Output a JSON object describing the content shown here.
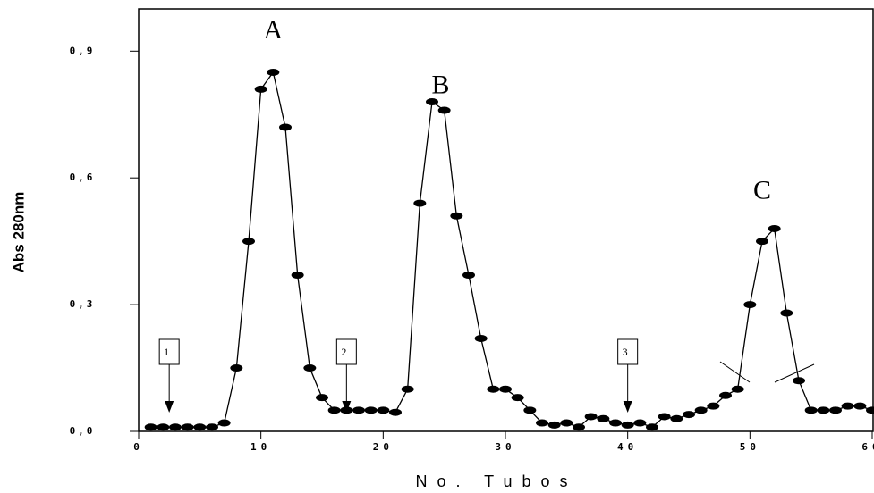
{
  "chart_data": {
    "type": "line",
    "x_label": "No. Tubos",
    "y_label": "Abs 280nm",
    "x": [
      1,
      2,
      3,
      4,
      5,
      6,
      7,
      8,
      9,
      10,
      11,
      12,
      13,
      14,
      15,
      16,
      17,
      18,
      19,
      20,
      21,
      22,
      23,
      24,
      25,
      26,
      27,
      28,
      29,
      30,
      31,
      32,
      33,
      34,
      35,
      36,
      37,
      38,
      39,
      40,
      41,
      42,
      43,
      44,
      45,
      46,
      47,
      48,
      49,
      50,
      51,
      52,
      53,
      54,
      55,
      56,
      57,
      58,
      59,
      60
    ],
    "series": [
      {
        "color": "#000000",
        "values": [
          0.01,
          0.01,
          0.01,
          0.01,
          0.01,
          0.01,
          0.02,
          0.15,
          0.45,
          0.81,
          0.85,
          0.72,
          0.37,
          0.15,
          0.08,
          0.05,
          0.05,
          0.05,
          0.05,
          0.05,
          0.045,
          0.1,
          0.54,
          0.78,
          0.76,
          0.51,
          0.37,
          0.22,
          0.1,
          0.1,
          0.08,
          0.05,
          0.02,
          0.015,
          0.02,
          0.01,
          0.035,
          0.03,
          0.02,
          0.015,
          0.02,
          0.01,
          0.035,
          0.03,
          0.04,
          0.05,
          0.06,
          0.085,
          0.1,
          0.3,
          0.45,
          0.48,
          0.28,
          0.12,
          0.05,
          0.05,
          0.05,
          0.06,
          0.06,
          0.05
        ]
      }
    ],
    "xlim": [
      0,
      60
    ],
    "xticks": [
      0,
      10,
      20,
      30,
      40,
      50,
      60
    ],
    "ylim": [
      0,
      1.0
    ],
    "yticks": [
      {
        "value": 0,
        "label": "0,0"
      },
      {
        "value": 0.3,
        "label": "0,3"
      },
      {
        "value": 0.6,
        "label": "0,6"
      },
      {
        "value": 0.9,
        "label": "0,9"
      }
    ],
    "peak_labels": [
      "A",
      "B",
      "C"
    ],
    "fraction_markers": [
      "1",
      "2",
      "3"
    ]
  }
}
